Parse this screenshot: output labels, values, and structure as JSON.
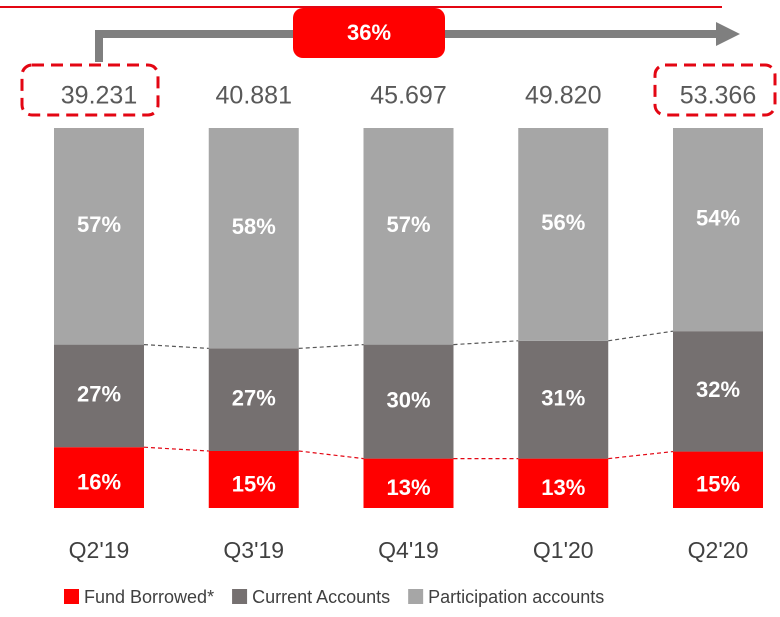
{
  "chart_data": {
    "type": "stacked_bar_100",
    "categories": [
      "Q2'19",
      "Q3'19",
      "Q4'19",
      "Q1'20",
      "Q2'20"
    ],
    "totals": [
      "39.231",
      "40.881",
      "45.697",
      "49.820",
      "53.366"
    ],
    "annotation": "36%",
    "series": [
      {
        "name": "Fund Borrowed*",
        "color": "#ff0000",
        "values": [
          16,
          15,
          13,
          13,
          15
        ],
        "value_labels": [
          "16%",
          "15%",
          "13%",
          "13%",
          "15%"
        ]
      },
      {
        "name": "Current Accounts",
        "color": "#757070",
        "values": [
          27,
          27,
          30,
          31,
          32
        ],
        "value_labels": [
          "27%",
          "27%",
          "30%",
          "31%",
          "32%"
        ]
      },
      {
        "name": "Participation accounts",
        "color": "#a6a6a6",
        "values": [
          57,
          58,
          57,
          56,
          54
        ],
        "value_labels": [
          "57%",
          "58%",
          "57%",
          "56%",
          "54%"
        ]
      }
    ]
  }
}
